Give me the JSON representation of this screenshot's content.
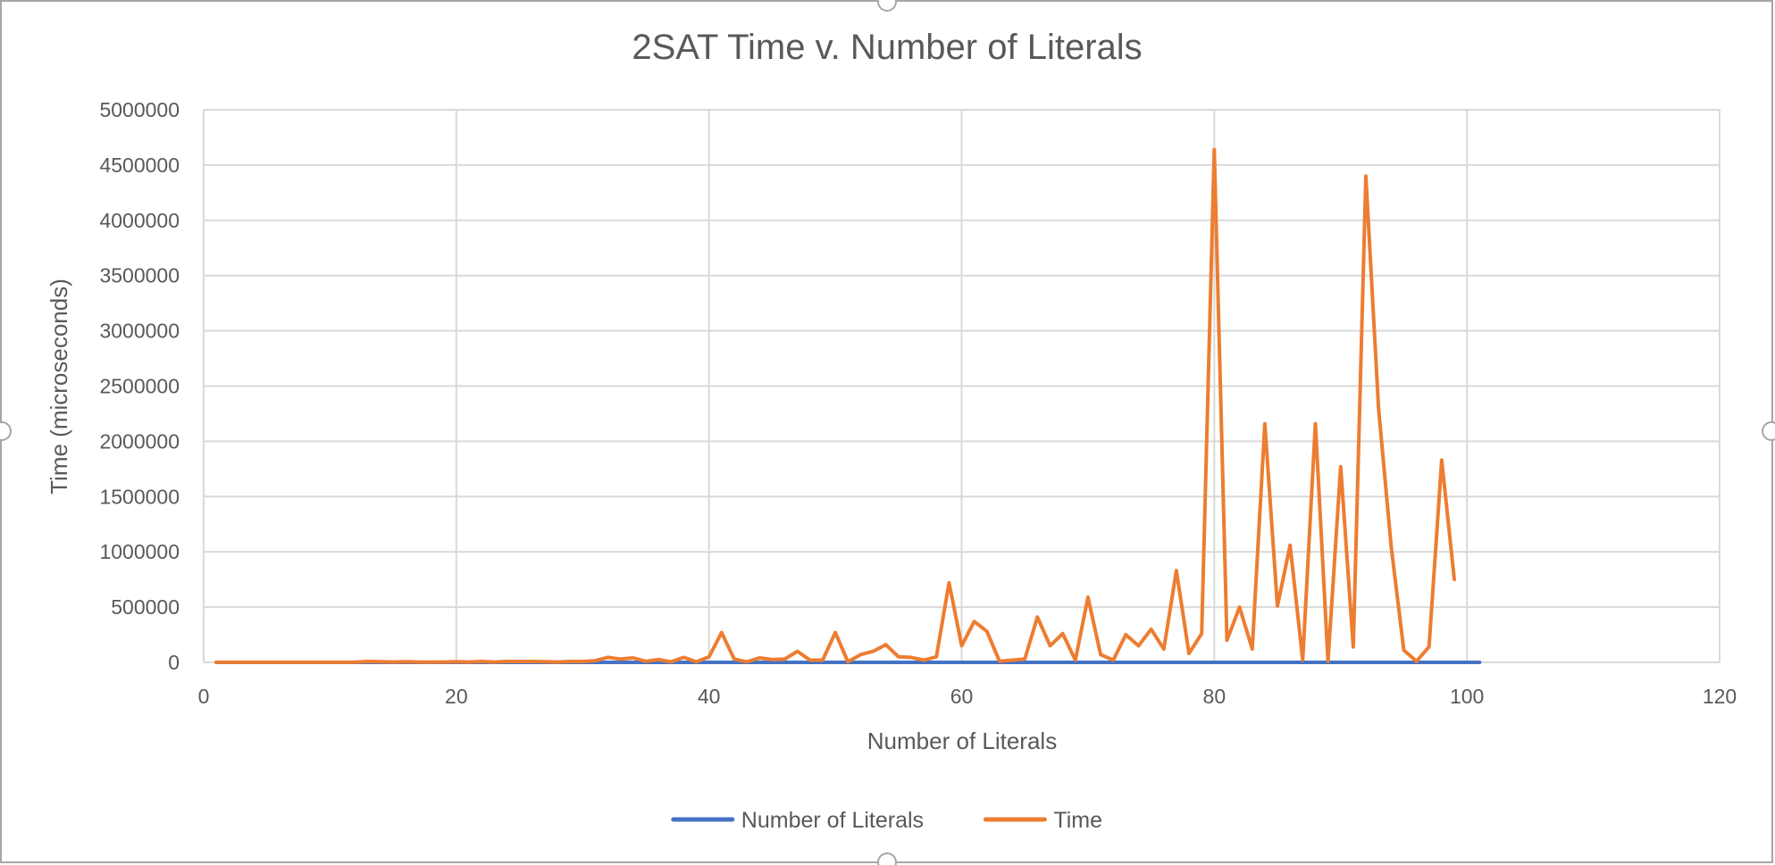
{
  "chart_data": {
    "type": "line",
    "title": "2SAT Time v. Number of Literals",
    "xlabel": "Number of Literals",
    "ylabel": "Time (microseconds)",
    "xlim": [
      0,
      120
    ],
    "ylim": [
      0,
      5000000
    ],
    "x_ticks": [
      0,
      20,
      40,
      60,
      80,
      100,
      120
    ],
    "y_ticks": [
      0,
      500000,
      1000000,
      1500000,
      2000000,
      2500000,
      3000000,
      3500000,
      4000000,
      4500000,
      5000000
    ],
    "grid": true,
    "legend_position": "bottom",
    "series": [
      {
        "name": "Number of Literals",
        "color": "#4472C4",
        "points": [
          [
            1,
            1
          ],
          [
            101,
            101
          ]
        ]
      },
      {
        "name": "Time",
        "color": "#ED7D31",
        "points": [
          [
            1,
            1000
          ],
          [
            2,
            1000
          ],
          [
            3,
            1000
          ],
          [
            4,
            1000
          ],
          [
            5,
            1000
          ],
          [
            6,
            1000
          ],
          [
            7,
            1000
          ],
          [
            8,
            1000
          ],
          [
            9,
            1000
          ],
          [
            10,
            1000
          ],
          [
            11,
            1000
          ],
          [
            12,
            2000
          ],
          [
            13,
            8000
          ],
          [
            14,
            6000
          ],
          [
            15,
            3000
          ],
          [
            16,
            6000
          ],
          [
            17,
            3000
          ],
          [
            18,
            2000
          ],
          [
            19,
            3000
          ],
          [
            20,
            6000
          ],
          [
            21,
            3000
          ],
          [
            22,
            8000
          ],
          [
            23,
            3000
          ],
          [
            24,
            8000
          ],
          [
            25,
            8000
          ],
          [
            26,
            8000
          ],
          [
            27,
            6000
          ],
          [
            28,
            3000
          ],
          [
            29,
            8000
          ],
          [
            30,
            8000
          ],
          [
            31,
            15000
          ],
          [
            32,
            45000
          ],
          [
            33,
            30000
          ],
          [
            34,
            40000
          ],
          [
            35,
            10000
          ],
          [
            36,
            25000
          ],
          [
            37,
            5000
          ],
          [
            38,
            45000
          ],
          [
            39,
            5000
          ],
          [
            40,
            50000
          ],
          [
            41,
            270000
          ],
          [
            42,
            30000
          ],
          [
            43,
            5000
          ],
          [
            44,
            40000
          ],
          [
            45,
            25000
          ],
          [
            46,
            30000
          ],
          [
            47,
            100000
          ],
          [
            48,
            20000
          ],
          [
            49,
            20000
          ],
          [
            50,
            270000
          ],
          [
            51,
            5000
          ],
          [
            52,
            70000
          ],
          [
            53,
            100000
          ],
          [
            54,
            160000
          ],
          [
            55,
            50000
          ],
          [
            56,
            45000
          ],
          [
            57,
            20000
          ],
          [
            58,
            50000
          ],
          [
            59,
            720000
          ],
          [
            60,
            150000
          ],
          [
            61,
            370000
          ],
          [
            62,
            280000
          ],
          [
            63,
            10000
          ],
          [
            64,
            20000
          ],
          [
            65,
            30000
          ],
          [
            66,
            410000
          ],
          [
            67,
            150000
          ],
          [
            68,
            260000
          ],
          [
            69,
            20000
          ],
          [
            70,
            590000
          ],
          [
            71,
            70000
          ],
          [
            72,
            20000
          ],
          [
            73,
            250000
          ],
          [
            74,
            150000
          ],
          [
            75,
            300000
          ],
          [
            76,
            120000
          ],
          [
            77,
            830000
          ],
          [
            78,
            80000
          ],
          [
            79,
            260000
          ],
          [
            80,
            4640000
          ],
          [
            81,
            200000
          ],
          [
            82,
            500000
          ],
          [
            83,
            120000
          ],
          [
            84,
            2160000
          ],
          [
            85,
            510000
          ],
          [
            86,
            1060000
          ],
          [
            87,
            20000
          ],
          [
            88,
            2160000
          ],
          [
            89,
            10000
          ],
          [
            90,
            1770000
          ],
          [
            91,
            140000
          ],
          [
            92,
            4400000
          ],
          [
            93,
            2300000
          ],
          [
            94,
            1050000
          ],
          [
            95,
            110000
          ],
          [
            96,
            10000
          ],
          [
            97,
            140000
          ],
          [
            98,
            1830000
          ],
          [
            99,
            750000
          ]
        ]
      }
    ]
  }
}
